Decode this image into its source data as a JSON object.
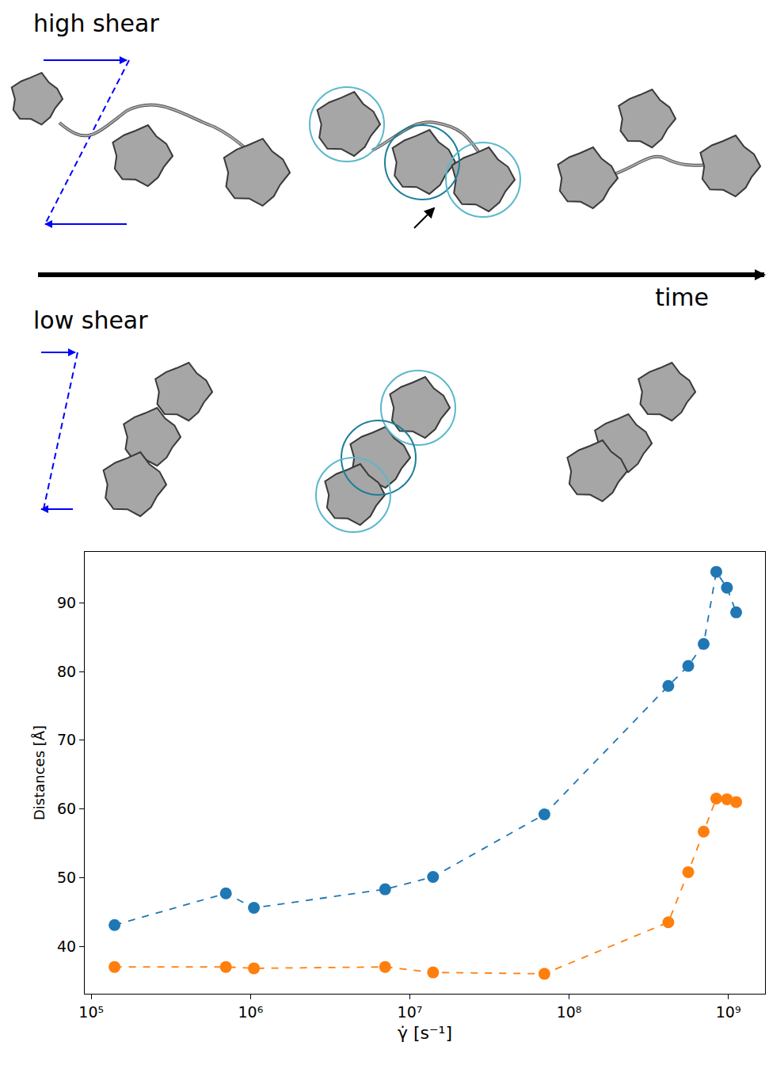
{
  "diagram": {
    "labels": {
      "top_row": "high shear",
      "time_axis": "time",
      "bottom_row": "low shear"
    }
  },
  "chart_data": {
    "type": "line",
    "x_label": "γ̇ [s⁻¹]",
    "y_label": "Distances [Å]",
    "log": "x",
    "grid": false,
    "marker": "circle",
    "line_style": "dash",
    "xlim": [
      91000,
      1700000000
    ],
    "ylim": [
      33.1,
      97.4
    ],
    "xticks": [
      {
        "value": 100000,
        "label": "10⁵"
      },
      {
        "value": 1000000,
        "label": "10⁶"
      },
      {
        "value": 10000000,
        "label": "10⁷"
      },
      {
        "value": 100000000,
        "label": "10⁸"
      },
      {
        "value": 1000000000,
        "label": "10⁹"
      }
    ],
    "yticks": [
      40,
      50,
      60,
      70,
      80,
      90
    ],
    "x": [
      140000,
      700000,
      1050000,
      7000000,
      14000000,
      70000000,
      420000000,
      560000000,
      700000000,
      840000000,
      980000000,
      1120000000
    ],
    "series": [
      {
        "color": "#1f77b4",
        "values": [
          43.1,
          47.7,
          45.6,
          48.3,
          50.1,
          59.2,
          77.9,
          80.8,
          84.0,
          94.5,
          92.2,
          88.6
        ]
      },
      {
        "color": "#ff7f0e",
        "values": [
          37.0,
          37.0,
          36.8,
          37.0,
          36.2,
          36.0,
          43.5,
          50.8,
          56.7,
          61.5,
          61.4,
          61.0
        ]
      }
    ]
  }
}
